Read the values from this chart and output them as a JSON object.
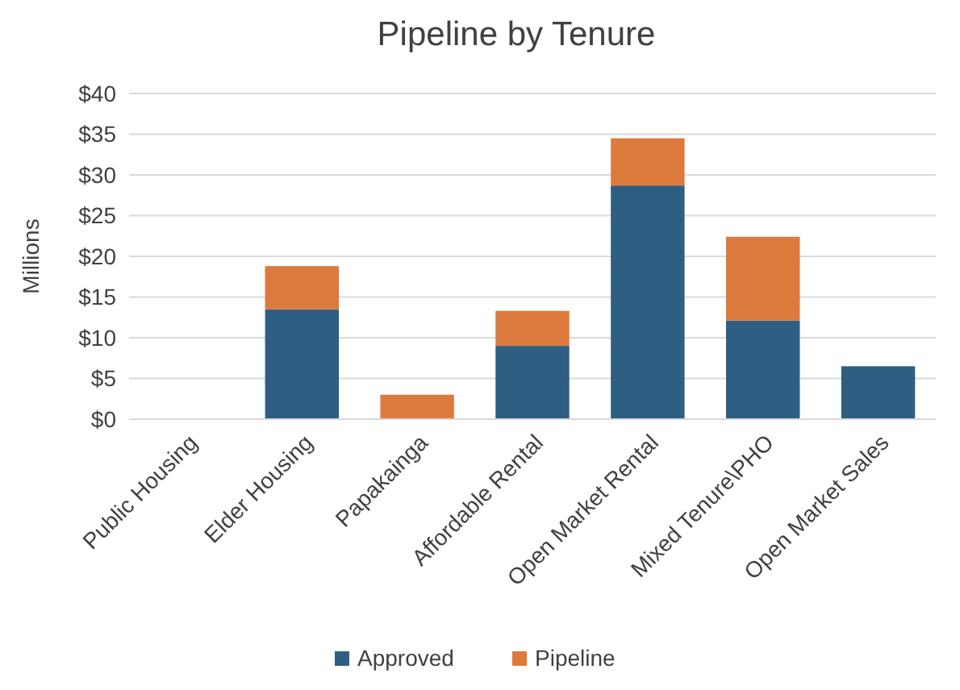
{
  "chart_data": {
    "type": "bar",
    "title": "Pipeline by Tenure",
    "ylabel": "Millions",
    "stacked": true,
    "grid": "y",
    "legend": "bottom",
    "categories": [
      "Public Housing",
      "Elder Housing",
      "Papakainga",
      "Affordable Rental",
      "Open Market Rental",
      "Mixed Tenure\\PHO",
      "Open Market Sales"
    ],
    "ylim": [
      0,
      40
    ],
    "yticks": [
      {
        "value": 0,
        "label": "$0"
      },
      {
        "value": 5,
        "label": "$5"
      },
      {
        "value": 10,
        "label": "$10"
      },
      {
        "value": 15,
        "label": "$15"
      },
      {
        "value": 20,
        "label": "$20"
      },
      {
        "value": 25,
        "label": "$25"
      },
      {
        "value": 30,
        "label": "$30"
      },
      {
        "value": 35,
        "label": "$35"
      },
      {
        "value": 40,
        "label": "$40"
      }
    ],
    "series": [
      {
        "name": "Approved",
        "color": "#2e5f82",
        "values": [
          0,
          13.5,
          0,
          9,
          28.7,
          12.1,
          6.5
        ]
      },
      {
        "name": "Pipeline",
        "color": "#dd7a3d",
        "values": [
          0,
          5.3,
          3,
          4.3,
          5.8,
          10.3,
          0
        ]
      }
    ]
  }
}
